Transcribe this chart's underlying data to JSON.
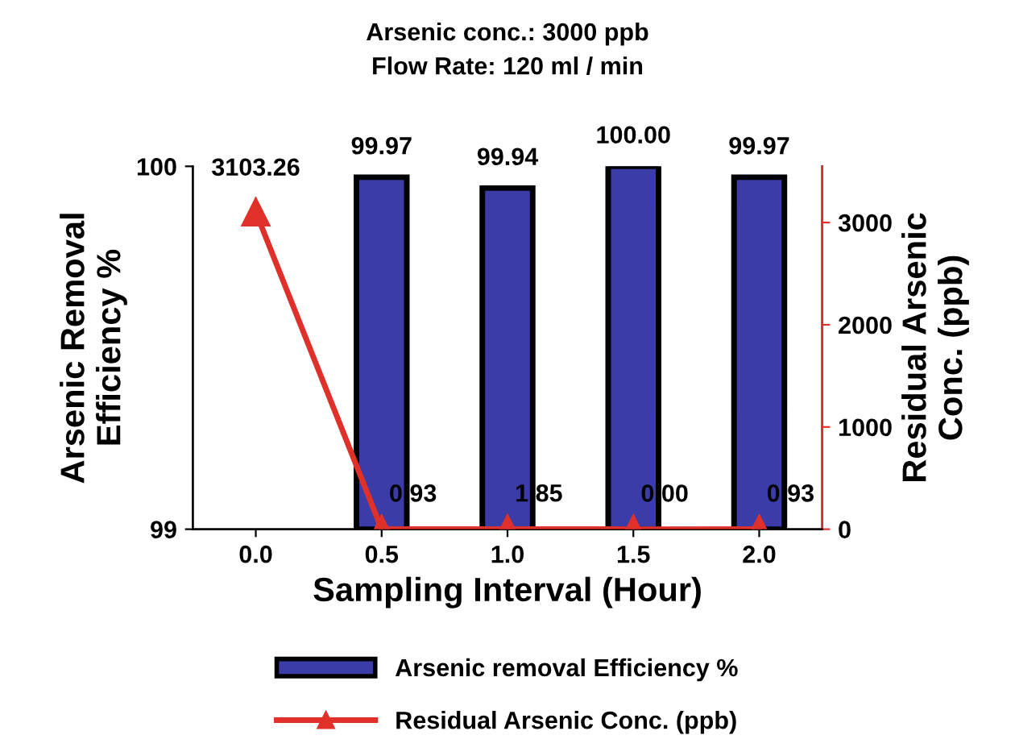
{
  "chart_data": {
    "type": "bar",
    "title": "Arsenic conc.: 3000 ppb",
    "subtitle": "Flow Rate: 120 ml / min",
    "xlabel": "Sampling Interval (Hour)",
    "ylabel": "Arsenic Removal\nEfficiency %",
    "y2label": "Residual Arsenic\nConc. (ppb)",
    "categories": [
      "0.0",
      "0.5",
      "1.0",
      "1.5",
      "2.0"
    ],
    "series": [
      {
        "name": "Arsenic removal Efficiency %",
        "color": "#3c3ca8",
        "values": [
          null,
          99.97,
          99.94,
          100.0,
          99.97
        ],
        "value_labels": [
          null,
          "99.97",
          "99.94",
          "100.00",
          "99.97"
        ]
      },
      {
        "name": "Residual Arsenic Conc. (ppb)",
        "type": "line",
        "axis": "y2",
        "color": "#e0302a",
        "marker": "triangle",
        "values": [
          3103.26,
          0.93,
          1.85,
          0.0,
          0.93
        ],
        "value_labels": [
          "3103.26",
          "0.93",
          "1.85",
          "0.00",
          "0.93"
        ]
      }
    ],
    "ylim": [
      99,
      100
    ],
    "yticks": [
      99,
      100
    ],
    "y2lim": [
      0,
      3550
    ],
    "y2ticks": [
      0,
      1000,
      2000,
      3000
    ],
    "grid": false,
    "legend": "bottom"
  }
}
